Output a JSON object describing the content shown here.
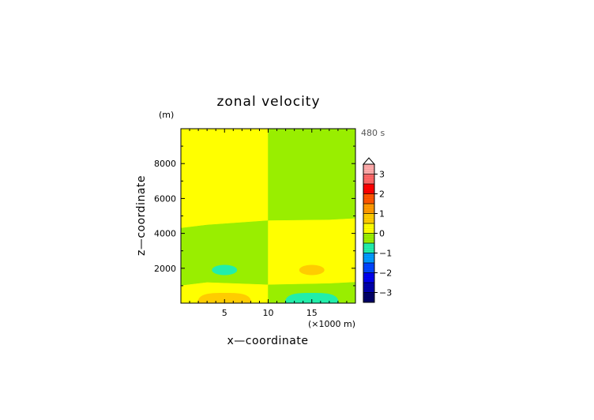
{
  "chart_data": {
    "type": "heatmap",
    "title": "zonal velocity",
    "xlabel": "x—coordinate",
    "ylabel": "z—coordinate",
    "x_unit": "(×1000 m)",
    "y_unit": "(m)",
    "time_label": "480 s",
    "xlim": [
      0,
      20
    ],
    "ylim": [
      0,
      10000
    ],
    "x_ticks": [
      5,
      10,
      15
    ],
    "x_tick_labels": [
      "5",
      "10",
      "15"
    ],
    "y_ticks": [
      2000,
      4000,
      6000,
      8000
    ],
    "y_tick_labels": [
      "2000",
      "4000",
      "6000",
      "8000"
    ],
    "grid": false,
    "regions": [
      {
        "label": "left upper",
        "value": 0.25,
        "color": "#ffff00"
      },
      {
        "label": "right upper",
        "value": -0.25,
        "color": "#99ee00"
      },
      {
        "label": "left middle",
        "value": -0.25,
        "color": "#99ee00"
      },
      {
        "label": "right middle",
        "value": 0.25,
        "color": "#ffff00"
      },
      {
        "label": "left bottom",
        "value": 0.25,
        "color": "#ffff00"
      },
      {
        "label": "right bottom",
        "value": -0.25,
        "color": "#99ee00"
      }
    ],
    "features": [
      {
        "x": 5,
        "z": 1900,
        "value": -0.75,
        "color": "#22eeaa"
      },
      {
        "x": 15,
        "z": 1900,
        "value": 0.75,
        "color": "#ffcc00"
      },
      {
        "x": 5,
        "z": 200,
        "value": 0.75,
        "color": "#ffcc00"
      },
      {
        "x": 15,
        "z": 200,
        "value": -0.75,
        "color": "#22eeaa"
      }
    ],
    "colorbar": {
      "min": -3.5,
      "max": 3.5,
      "step": 0.5,
      "ticks": [
        3,
        2,
        1,
        0,
        -1,
        -2,
        -3
      ],
      "tick_labels": [
        "3",
        "2",
        "1",
        "0",
        "−1",
        "−2",
        "−3"
      ],
      "extend_top": true,
      "levels": [
        {
          "value": -3.25,
          "color": "#000066"
        },
        {
          "value": -2.75,
          "color": "#0000aa"
        },
        {
          "value": -2.25,
          "color": "#0000ee"
        },
        {
          "value": -1.75,
          "color": "#0044ff"
        },
        {
          "value": -1.25,
          "color": "#0099ff"
        },
        {
          "value": -0.75,
          "color": "#22eeaa"
        },
        {
          "value": -0.25,
          "color": "#99ee00"
        },
        {
          "value": 0.25,
          "color": "#ffff00"
        },
        {
          "value": 0.75,
          "color": "#ffcc00"
        },
        {
          "value": 1.25,
          "color": "#ff9900"
        },
        {
          "value": 1.75,
          "color": "#ff5500"
        },
        {
          "value": 2.25,
          "color": "#ff0000"
        },
        {
          "value": 2.75,
          "color": "#ff6666"
        },
        {
          "value": 3.25,
          "color": "#ffaaaa"
        }
      ]
    }
  }
}
